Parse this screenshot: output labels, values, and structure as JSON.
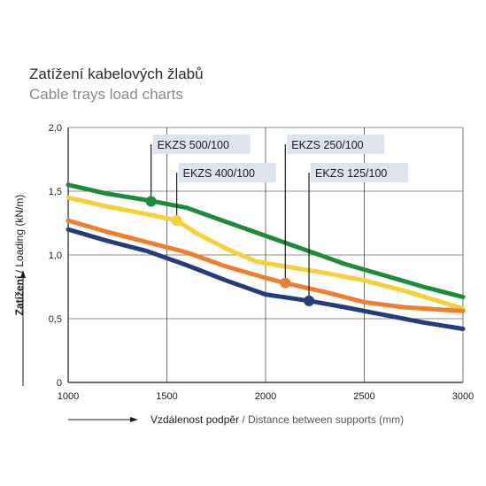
{
  "header": {
    "title": "Zatížení kabelových žlabů",
    "subtitle": "Cable trays load charts"
  },
  "chart_data": {
    "type": "line",
    "xlabel_cz": "Vzdálenost podpěr",
    "xlabel_en": "/ Distance between supports (mm)",
    "ylabel_cz": "Zatížení",
    "ylabel_en": "/ Loading (kN/m)",
    "xlim": [
      1000,
      3000
    ],
    "ylim": [
      0,
      2
    ],
    "x_ticks": [
      "1000",
      "1500",
      "2000",
      "2500",
      "3000"
    ],
    "x_tick_values": [
      1000,
      1500,
      2000,
      2500,
      3000
    ],
    "y_ticks": [
      "0",
      "0,5",
      "1,0",
      "1,5",
      "2,0"
    ],
    "y_tick_values": [
      0,
      0.5,
      1.0,
      1.5,
      2.0
    ],
    "grid": true,
    "series": [
      {
        "name": "EKZS 500/100",
        "color": "#1e8a3c",
        "x": [
          1000,
          1200,
          1400,
          1600,
          1800,
          2000,
          2200,
          2400,
          2600,
          2800,
          3000
        ],
        "y": [
          1.55,
          1.48,
          1.43,
          1.37,
          1.26,
          1.15,
          1.04,
          0.93,
          0.84,
          0.75,
          0.67
        ],
        "marker": {
          "x": 1420,
          "y": 1.42
        }
      },
      {
        "name": "EKZS 400/100",
        "color": "#f5d038",
        "x": [
          1000,
          1200,
          1400,
          1550,
          1650,
          1800,
          1950,
          2100,
          2300,
          2500,
          2700,
          3000
        ],
        "y": [
          1.45,
          1.38,
          1.32,
          1.27,
          1.17,
          1.05,
          0.95,
          0.91,
          0.86,
          0.8,
          0.72,
          0.58
        ],
        "marker": {
          "x": 1550,
          "y": 1.27
        }
      },
      {
        "name": "EKZS 250/100",
        "color": "#ee7f2e",
        "x": [
          1000,
          1200,
          1400,
          1600,
          1800,
          2000,
          2100,
          2300,
          2500,
          2700,
          3000
        ],
        "y": [
          1.27,
          1.18,
          1.1,
          1.02,
          0.91,
          0.82,
          0.78,
          0.71,
          0.63,
          0.59,
          0.56
        ],
        "marker": {
          "x": 2100,
          "y": 0.78
        }
      },
      {
        "name": "EKZS 125/100",
        "color": "#243d7a",
        "x": [
          1000,
          1200,
          1400,
          1600,
          1800,
          2000,
          2220,
          2400,
          2600,
          2800,
          3000
        ],
        "y": [
          1.2,
          1.11,
          1.03,
          0.92,
          0.8,
          0.69,
          0.64,
          0.59,
          0.53,
          0.47,
          0.42
        ],
        "marker": {
          "x": 2220,
          "y": 0.64
        }
      }
    ]
  }
}
